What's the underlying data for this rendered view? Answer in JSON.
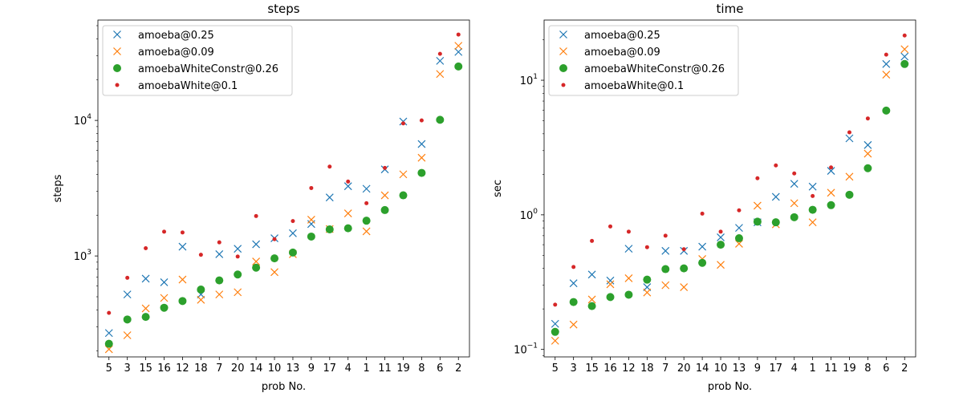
{
  "chart_data": [
    {
      "type": "scatter",
      "title": "steps",
      "xlabel": "prob No.",
      "ylabel": "steps",
      "yscale": "log",
      "ylim": [
        180,
        55000
      ],
      "yticks": [
        {
          "value": 1000,
          "base": "10",
          "exp": "3"
        },
        {
          "value": 10000,
          "base": "10",
          "exp": "4"
        }
      ],
      "categories": [
        "5",
        "3",
        "15",
        "16",
        "12",
        "18",
        "7",
        "20",
        "14",
        "10",
        "13",
        "9",
        "17",
        "4",
        "1",
        "11",
        "19",
        "8",
        "6",
        "2"
      ],
      "legend_position": "top-left",
      "series": [
        {
          "name": "amoeba@0.25",
          "marker": "x",
          "color": "#1f77b4",
          "values": [
            270,
            520,
            680,
            640,
            1170,
            520,
            1030,
            1130,
            1220,
            1350,
            1470,
            1720,
            2700,
            3270,
            3130,
            4350,
            9800,
            6700,
            27500,
            32000
          ]
        },
        {
          "name": "amoeba@0.09",
          "marker": "x",
          "color": "#ff7f0e",
          "values": [
            205,
            260,
            410,
            490,
            670,
            475,
            520,
            540,
            910,
            760,
            1030,
            1850,
            1580,
            2060,
            1520,
            2800,
            4000,
            5300,
            22000,
            35500
          ]
        },
        {
          "name": "amoebaWhiteConstr@0.26",
          "marker": "o",
          "color": "#2ca02c",
          "values": [
            225,
            340,
            355,
            415,
            465,
            565,
            660,
            730,
            820,
            960,
            1060,
            1390,
            1570,
            1600,
            1820,
            2180,
            2800,
            4100,
            10100,
            25000
          ]
        },
        {
          "name": "amoebaWhite@0.1",
          "marker": ".",
          "color": "#d62728",
          "values": [
            380,
            690,
            1140,
            1510,
            1490,
            1020,
            1260,
            990,
            1970,
            1330,
            1810,
            3170,
            4560,
            3540,
            2450,
            4460,
            9500,
            10000,
            31000,
            43000
          ]
        }
      ]
    },
    {
      "type": "scatter",
      "title": "time",
      "xlabel": "prob No.",
      "ylabel": "sec",
      "yscale": "log",
      "ylim": [
        0.088,
        28
      ],
      "yticks": [
        {
          "value": 0.1,
          "base": "10",
          "exp": "−1"
        },
        {
          "value": 1,
          "base": "10",
          "exp": "0"
        },
        {
          "value": 10,
          "base": "10",
          "exp": "1"
        }
      ],
      "categories": [
        "5",
        "3",
        "15",
        "16",
        "12",
        "18",
        "7",
        "20",
        "14",
        "10",
        "13",
        "9",
        "17",
        "4",
        "1",
        "11",
        "19",
        "8",
        "6",
        "2"
      ],
      "legend_position": "top-left",
      "series": [
        {
          "name": "amoeba@0.25",
          "marker": "x",
          "color": "#1f77b4",
          "values": [
            0.155,
            0.31,
            0.36,
            0.325,
            0.56,
            0.29,
            0.54,
            0.54,
            0.58,
            0.68,
            0.8,
            0.88,
            1.36,
            1.7,
            1.62,
            2.12,
            3.7,
            3.3,
            13.2,
            15.0
          ]
        },
        {
          "name": "amoeba@0.09",
          "marker": "x",
          "color": "#ff7f0e",
          "values": [
            0.116,
            0.153,
            0.235,
            0.305,
            0.338,
            0.265,
            0.3,
            0.29,
            0.47,
            0.425,
            0.61,
            1.17,
            0.85,
            1.22,
            0.88,
            1.46,
            1.92,
            2.85,
            11.0,
            17.0
          ]
        },
        {
          "name": "amoebaWhiteConstr@0.26",
          "marker": "o",
          "color": "#2ca02c",
          "values": [
            0.135,
            0.225,
            0.21,
            0.245,
            0.255,
            0.33,
            0.395,
            0.4,
            0.44,
            0.6,
            0.67,
            0.89,
            0.88,
            0.96,
            1.09,
            1.18,
            1.41,
            2.22,
            5.95,
            13.2
          ]
        },
        {
          "name": "amoebaWhite@0.1",
          "marker": ".",
          "color": "#d62728",
          "values": [
            0.215,
            0.41,
            0.64,
            0.82,
            0.75,
            0.575,
            0.7,
            0.555,
            1.02,
            0.75,
            1.08,
            1.87,
            2.33,
            2.03,
            1.38,
            2.25,
            4.1,
            5.2,
            15.5,
            21.5
          ]
        }
      ]
    }
  ]
}
